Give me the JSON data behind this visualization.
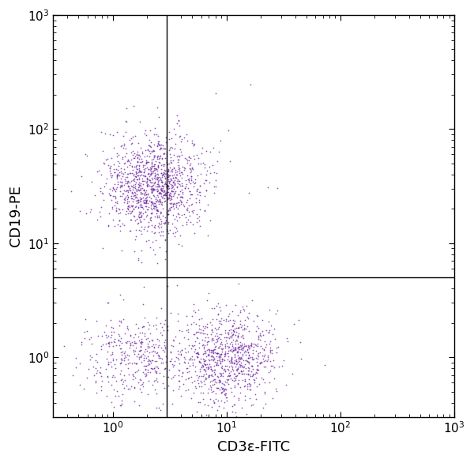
{
  "dot_color": "#6B1FA0",
  "dot_alpha": 0.75,
  "dot_size": 1.5,
  "xlim": [
    0.3,
    1000
  ],
  "ylim": [
    0.3,
    1000
  ],
  "xlabel": "CD3ε-FITC",
  "ylabel": "CD19-PE",
  "gate_x": 3.0,
  "gate_y": 5.0,
  "clusters": {
    "B_cells": {
      "x_center_log": 0.35,
      "y_center_log": 1.5,
      "x_spread_log": 0.22,
      "y_spread_log": 0.22,
      "n": 1200
    },
    "T_cells": {
      "x_center_log": 1.0,
      "y_center_log": 0.0,
      "x_spread_log": 0.22,
      "y_spread_log": 0.2,
      "n": 900
    },
    "DN_cells": {
      "x_center_log": 0.2,
      "y_center_log": 0.0,
      "x_spread_log": 0.22,
      "y_spread_log": 0.2,
      "n": 400
    },
    "scatter_UL": {
      "x_center_log": 0.65,
      "y_center_log": 1.55,
      "x_spread_log": 0.35,
      "y_spread_log": 0.35,
      "n": 25
    }
  },
  "seed": 42,
  "xlabel_fontsize": 13,
  "ylabel_fontsize": 13,
  "tick_fontsize": 11,
  "background_color": "#ffffff",
  "spine_color": "#000000"
}
